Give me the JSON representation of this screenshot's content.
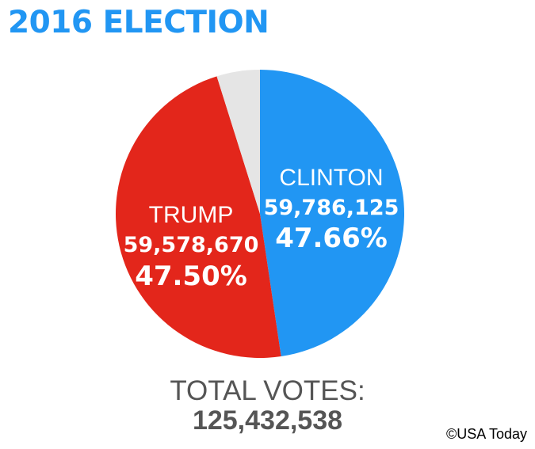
{
  "title": "2016 ELECTION",
  "chart_data": {
    "type": "pie",
    "slices": [
      {
        "name": "CLINTON",
        "votes": "59,786,125",
        "percent": "47.66%",
        "value": 47.66,
        "color": "#2196f3"
      },
      {
        "name": "TRUMP",
        "votes": "59,578,670",
        "percent": "47.50%",
        "value": 47.5,
        "color": "#e3261b"
      },
      {
        "name": "",
        "votes": "",
        "percent": "",
        "value": 4.84,
        "color": "#e5e5e5"
      }
    ]
  },
  "total": {
    "label": "TOTAL VOTES:",
    "value": "125,432,538"
  },
  "credit": "©USA Today"
}
